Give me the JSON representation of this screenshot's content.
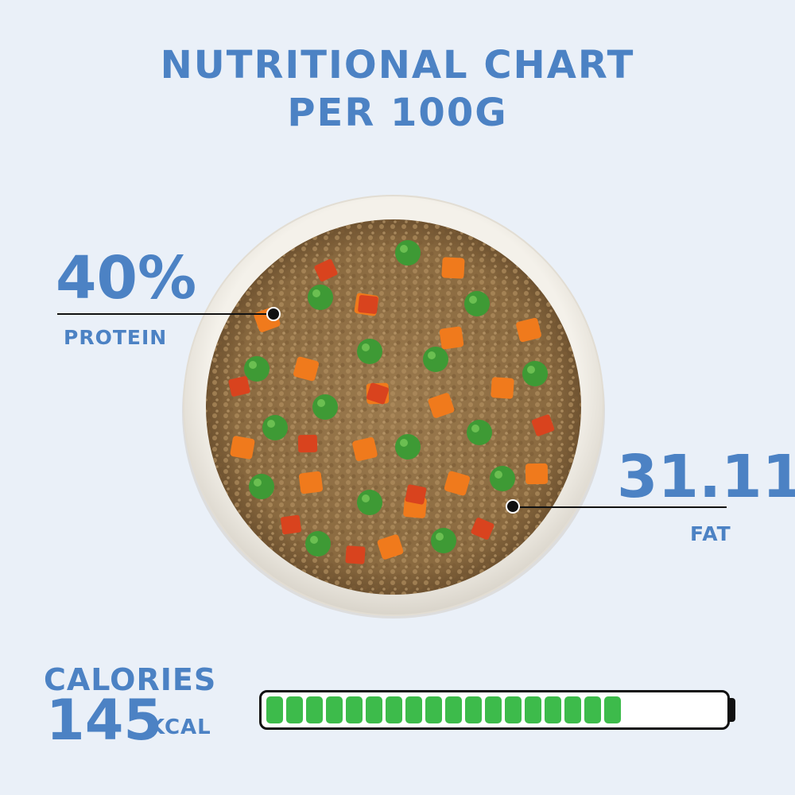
{
  "title": {
    "line1": "NUTRITIONAL CHART",
    "line2": "PER 100G"
  },
  "protein": {
    "value": "40%",
    "label": "PROTEIN"
  },
  "fat": {
    "value": "31.11",
    "label": "FAT"
  },
  "calories": {
    "label": "CALORIES",
    "value": "145",
    "unit": "KCAL",
    "fill_fraction": 0.77,
    "segment_count": 18
  },
  "colors": {
    "accent": "#4c82c4",
    "background": "#eaf0f8",
    "bar_fill": "#3dbb4b",
    "pea": "#3e9a35",
    "carrot": "#f07a1c",
    "pepper": "#d9431e"
  },
  "image": {
    "subject": "bowl-of-food"
  }
}
